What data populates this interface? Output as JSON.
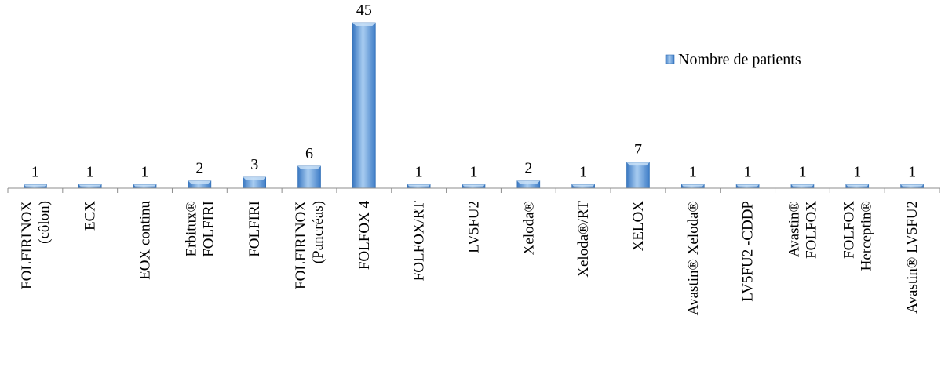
{
  "chart_data": {
    "type": "bar",
    "categories": [
      [
        "FOLFIRINOX",
        "(côlon)"
      ],
      [
        "ECX"
      ],
      [
        "EOX continu"
      ],
      [
        "Erbitux®",
        "FOLFIRI"
      ],
      [
        "FOLFIRI"
      ],
      [
        "FOLFIRINOX",
        "(Pancréas)"
      ],
      [
        "FOLFOX 4"
      ],
      [
        "FOLFOX/RT"
      ],
      [
        "LV5FU2"
      ],
      [
        "Xeloda®"
      ],
      [
        "Xeloda®/RT"
      ],
      [
        "XELOX"
      ],
      [
        "Avastin® Xeloda®"
      ],
      [
        "LV5FU2 -CDDP"
      ],
      [
        "Avastin®",
        "FOLFOX"
      ],
      [
        "FOLFOX",
        "Herceptin®"
      ],
      [
        "Avastin® LV5FU2"
      ]
    ],
    "series": [
      {
        "name": "Nombre de patients",
        "values": [
          1,
          1,
          1,
          2,
          3,
          6,
          45,
          1,
          1,
          2,
          1,
          7,
          1,
          1,
          1,
          1,
          1
        ],
        "color": "#5b9bd5"
      }
    ],
    "data_labels": true,
    "ylim": [
      0,
      45
    ],
    "grid": false,
    "legend_position": "top-right"
  }
}
